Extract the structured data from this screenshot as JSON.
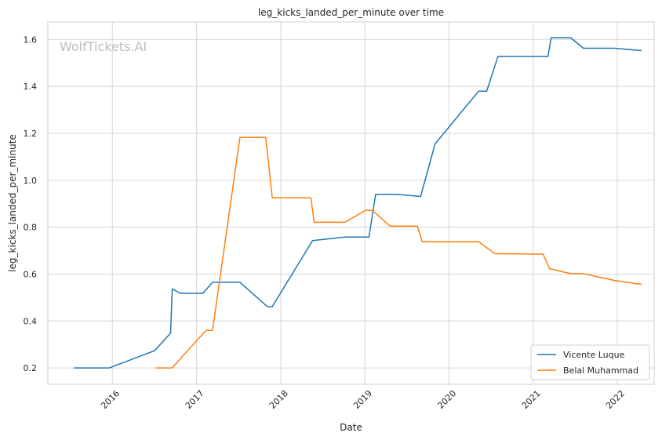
{
  "chart_data": {
    "type": "line",
    "title": "leg_kicks_landed_per_minute over time",
    "xlabel": "Date",
    "ylabel": "leg_kicks_landed_per_minute",
    "watermark": "WolfTickets.AI",
    "x_axis_type": "date",
    "xlim": [
      "2015-03-27",
      "2022-06-10"
    ],
    "ylim": [
      0.13,
      1.675
    ],
    "x_ticks": [
      "2016-01-01",
      "2017-01-01",
      "2018-01-01",
      "2019-01-01",
      "2020-01-01",
      "2021-01-01",
      "2022-01-01"
    ],
    "x_tick_labels": [
      "2016",
      "2017",
      "2018",
      "2019",
      "2020",
      "2021",
      "2022"
    ],
    "y_ticks": [
      0.2,
      0.4,
      0.6,
      0.8,
      1.0,
      1.2,
      1.4,
      1.6
    ],
    "y_tick_labels": [
      "0.2",
      "0.4",
      "0.6",
      "0.8",
      "1.0",
      "1.2",
      "1.4",
      "1.6"
    ],
    "grid": true,
    "legend_position": "bottom-right",
    "series": [
      {
        "name": "Vicente Luque",
        "color": "#1f77b4",
        "points": [
          {
            "x": "2015-07-18",
            "y": 0.2
          },
          {
            "x": "2015-12-19",
            "y": 0.2
          },
          {
            "x": "2016-07-02",
            "y": 0.273
          },
          {
            "x": "2016-09-10",
            "y": 0.348
          },
          {
            "x": "2016-09-17",
            "y": 0.537
          },
          {
            "x": "2016-10-22",
            "y": 0.518
          },
          {
            "x": "2017-01-28",
            "y": 0.518
          },
          {
            "x": "2017-03-11",
            "y": 0.565
          },
          {
            "x": "2017-07-08",
            "y": 0.565
          },
          {
            "x": "2017-11-04",
            "y": 0.461
          },
          {
            "x": "2017-11-25",
            "y": 0.461
          },
          {
            "x": "2018-05-19",
            "y": 0.743
          },
          {
            "x": "2018-10-06",
            "y": 0.758
          },
          {
            "x": "2019-01-19",
            "y": 0.758
          },
          {
            "x": "2019-02-17",
            "y": 0.94
          },
          {
            "x": "2019-05-18",
            "y": 0.94
          },
          {
            "x": "2019-08-31",
            "y": 0.931
          },
          {
            "x": "2019-11-02",
            "y": 1.155
          },
          {
            "x": "2020-05-09",
            "y": 1.38
          },
          {
            "x": "2020-06-13",
            "y": 1.38
          },
          {
            "x": "2020-08-01",
            "y": 1.528
          },
          {
            "x": "2021-03-06",
            "y": 1.528
          },
          {
            "x": "2021-03-20",
            "y": 1.608
          },
          {
            "x": "2021-06-12",
            "y": 1.608
          },
          {
            "x": "2021-08-07",
            "y": 1.563
          },
          {
            "x": "2021-12-18",
            "y": 1.563
          },
          {
            "x": "2022-04-16",
            "y": 1.553
          }
        ]
      },
      {
        "name": "Belal Muhammad",
        "color": "#ff7f0e",
        "points": [
          {
            "x": "2016-07-07",
            "y": 0.2
          },
          {
            "x": "2016-09-17",
            "y": 0.2
          },
          {
            "x": "2016-11-19",
            "y": 0.27
          },
          {
            "x": "2017-02-11",
            "y": 0.36
          },
          {
            "x": "2017-03-11",
            "y": 0.36
          },
          {
            "x": "2017-07-08",
            "y": 1.183
          },
          {
            "x": "2017-10-28",
            "y": 1.183
          },
          {
            "x": "2017-11-25",
            "y": 0.925
          },
          {
            "x": "2018-05-12",
            "y": 0.925
          },
          {
            "x": "2018-05-26",
            "y": 0.821
          },
          {
            "x": "2018-10-06",
            "y": 0.821
          },
          {
            "x": "2019-01-05",
            "y": 0.872
          },
          {
            "x": "2019-02-02",
            "y": 0.872
          },
          {
            "x": "2019-04-20",
            "y": 0.805
          },
          {
            "x": "2019-08-17",
            "y": 0.805
          },
          {
            "x": "2019-09-07",
            "y": 0.738
          },
          {
            "x": "2020-05-09",
            "y": 0.738
          },
          {
            "x": "2020-07-18",
            "y": 0.687
          },
          {
            "x": "2021-02-13",
            "y": 0.685
          },
          {
            "x": "2021-03-13",
            "y": 0.623
          },
          {
            "x": "2021-06-12",
            "y": 0.602
          },
          {
            "x": "2021-08-07",
            "y": 0.602
          },
          {
            "x": "2021-12-18",
            "y": 0.573
          },
          {
            "x": "2022-04-16",
            "y": 0.556
          }
        ]
      }
    ]
  }
}
